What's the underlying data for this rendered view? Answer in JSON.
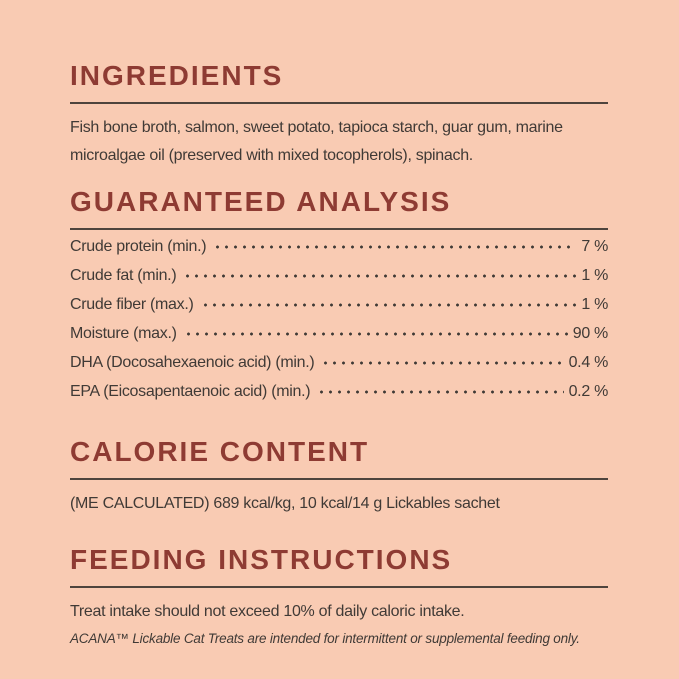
{
  "theme": {
    "background_color": "#f9cbb3",
    "heading_color": "#8e3b33",
    "text_color": "#403a36",
    "rule_color": "#4e443d"
  },
  "sections": {
    "ingredients": {
      "title": "INGREDIENTS",
      "lines": [
        "Fish bone broth, salmon, sweet potato, tapioca starch, guar gum, marine",
        "microalgae oil (preserved with mixed tocopherols), spinach."
      ]
    },
    "guaranteed_analysis": {
      "title": "GUARANTEED ANALYSIS",
      "rows": [
        {
          "label": "Crude protein (min.)",
          "value": "7 %"
        },
        {
          "label": "Crude fat (min.)",
          "value": "1 %"
        },
        {
          "label": "Crude fiber (max.)",
          "value": "1 %"
        },
        {
          "label": "Moisture (max.)",
          "value": "90 %"
        },
        {
          "label": "DHA (Docosahexaenoic acid) (min.)",
          "value": "0.4 %"
        },
        {
          "label": "EPA (Eicosapentaenoic acid) (min.)",
          "value": "0.2 %"
        }
      ]
    },
    "calorie_content": {
      "title": "CALORIE CONTENT",
      "body": "(ME CALCULATED) 689 kcal/kg, 10 kcal/14 g Lickables sachet"
    },
    "feeding_instructions": {
      "title": "FEEDING INSTRUCTIONS",
      "body": "Treat intake should not exceed 10% of daily caloric intake.",
      "note": "ACANA™ Lickable Cat Treats are intended for intermittent or supplemental feeding only."
    }
  }
}
